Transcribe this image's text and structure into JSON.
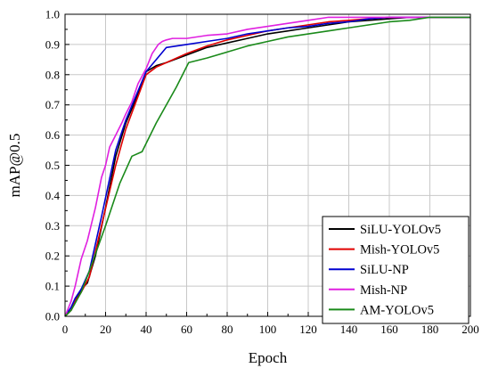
{
  "chart_data": {
    "type": "line",
    "xlabel": "Epoch",
    "ylabel": "mAP@0.5",
    "xlim": [
      0,
      200
    ],
    "ylim": [
      0,
      1.0
    ],
    "xticks": [
      0,
      20,
      40,
      60,
      80,
      100,
      120,
      140,
      160,
      180,
      200
    ],
    "xtick_labels": [
      "0",
      "20",
      "40",
      "60",
      "80",
      "100",
      "120",
      "140",
      "160",
      "180",
      "200"
    ],
    "yticks": [
      0,
      0.1,
      0.2,
      0.3,
      0.4,
      0.5,
      0.6,
      0.7,
      0.8,
      0.9,
      1.0
    ],
    "ytick_labels": [
      "0.0",
      "0.1",
      "0.2",
      "0.3",
      "0.4",
      "0.5",
      "0.6",
      "0.7",
      "0.8",
      "0.9",
      "1.0"
    ],
    "grid": true,
    "legend_position": "bottom-right",
    "series": [
      {
        "name": "SiLU-YOLOv5",
        "color": "#000000",
        "x": [
          0,
          3,
          5,
          8,
          11,
          15,
          20,
          25,
          30,
          35,
          40,
          45,
          50,
          60,
          70,
          80,
          90,
          100,
          110,
          120,
          130,
          140,
          150,
          160,
          170,
          180,
          200
        ],
        "y": [
          0.0,
          0.02,
          0.05,
          0.09,
          0.11,
          0.2,
          0.36,
          0.53,
          0.64,
          0.72,
          0.81,
          0.83,
          0.84,
          0.865,
          0.89,
          0.905,
          0.92,
          0.935,
          0.945,
          0.955,
          0.965,
          0.975,
          0.98,
          0.985,
          0.99,
          0.99,
          0.99
        ]
      },
      {
        "name": "Mish-YOLOv5",
        "color": "#e00000",
        "x": [
          0,
          3,
          5,
          8,
          12,
          18,
          25,
          30,
          35,
          40,
          45,
          50,
          60,
          70,
          80,
          90,
          100,
          110,
          120,
          130,
          140,
          150,
          160,
          170,
          180,
          200
        ],
        "y": [
          0.0,
          0.02,
          0.05,
          0.08,
          0.13,
          0.3,
          0.5,
          0.62,
          0.71,
          0.8,
          0.825,
          0.84,
          0.87,
          0.895,
          0.915,
          0.93,
          0.945,
          0.955,
          0.965,
          0.975,
          0.98,
          0.985,
          0.99,
          0.99,
          0.99,
          0.99
        ]
      },
      {
        "name": "SiLU-NP",
        "color": "#0000d0",
        "x": [
          0,
          3,
          5,
          8,
          12,
          18,
          25,
          30,
          35,
          40,
          45,
          50,
          60,
          70,
          80,
          90,
          100,
          110,
          120,
          130,
          140,
          150,
          160,
          170,
          180,
          200
        ],
        "y": [
          0.0,
          0.03,
          0.06,
          0.09,
          0.15,
          0.33,
          0.55,
          0.65,
          0.73,
          0.81,
          0.85,
          0.89,
          0.9,
          0.91,
          0.92,
          0.935,
          0.945,
          0.955,
          0.96,
          0.97,
          0.975,
          0.985,
          0.99,
          0.99,
          0.99,
          0.99
        ]
      },
      {
        "name": "Mish-NP",
        "color": "#e020e0",
        "x": [
          0,
          3,
          5,
          8,
          11,
          15,
          18,
          20,
          22,
          25,
          28,
          30,
          33,
          36,
          40,
          43,
          46,
          48,
          50,
          53,
          56,
          60,
          70,
          80,
          90,
          100,
          110,
          120,
          130,
          140,
          150,
          160,
          170,
          180,
          200
        ],
        "y": [
          0.0,
          0.05,
          0.1,
          0.19,
          0.25,
          0.36,
          0.46,
          0.5,
          0.56,
          0.6,
          0.64,
          0.67,
          0.71,
          0.77,
          0.82,
          0.87,
          0.9,
          0.91,
          0.915,
          0.92,
          0.92,
          0.92,
          0.93,
          0.935,
          0.95,
          0.96,
          0.97,
          0.98,
          0.99,
          0.99,
          0.99,
          0.99,
          0.99,
          0.99,
          0.99
        ]
      },
      {
        "name": "AM-YOLOv5",
        "color": "#1a8a1a",
        "x": [
          0,
          3,
          8,
          12,
          20,
          27,
          33,
          38,
          45,
          55,
          61,
          70,
          80,
          90,
          100,
          110,
          120,
          130,
          140,
          150,
          160,
          170,
          180,
          190,
          200
        ],
        "y": [
          0.0,
          0.02,
          0.08,
          0.15,
          0.3,
          0.44,
          0.53,
          0.545,
          0.64,
          0.76,
          0.84,
          0.855,
          0.875,
          0.895,
          0.91,
          0.925,
          0.935,
          0.945,
          0.955,
          0.965,
          0.975,
          0.98,
          0.99,
          0.99,
          0.99
        ]
      }
    ]
  }
}
